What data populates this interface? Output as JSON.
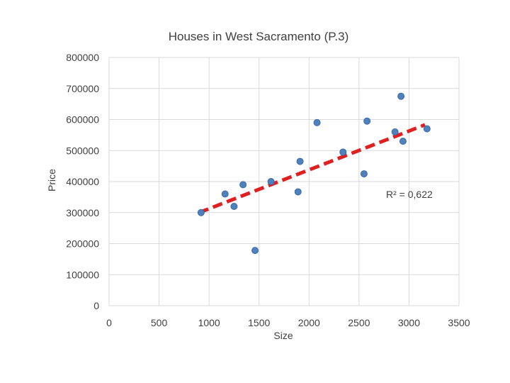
{
  "chart_data": {
    "type": "scatter",
    "title": "Houses in West Sacramento (P.3)",
    "xlabel": "Size",
    "ylabel": "Price",
    "xlim": [
      0,
      3500
    ],
    "ylim": [
      0,
      800000
    ],
    "x_ticks": [
      "0",
      "500",
      "1000",
      "1500",
      "2000",
      "2500",
      "3000",
      "3500"
    ],
    "y_ticks": [
      "0",
      "100000",
      "200000",
      "300000",
      "400000",
      "500000",
      "600000",
      "700000",
      "800000"
    ],
    "grid": true,
    "series": [
      {
        "points": [
          {
            "x": 920,
            "y": 300000
          },
          {
            "x": 1160,
            "y": 360000
          },
          {
            "x": 1250,
            "y": 320000
          },
          {
            "x": 1340,
            "y": 390000
          },
          {
            "x": 1460,
            "y": 178000
          },
          {
            "x": 1620,
            "y": 400000
          },
          {
            "x": 1890,
            "y": 367000
          },
          {
            "x": 1910,
            "y": 465000
          },
          {
            "x": 2080,
            "y": 590000
          },
          {
            "x": 2340,
            "y": 495000
          },
          {
            "x": 2550,
            "y": 425000
          },
          {
            "x": 2580,
            "y": 595000
          },
          {
            "x": 2860,
            "y": 560000
          },
          {
            "x": 2920,
            "y": 675000
          },
          {
            "x": 2940,
            "y": 530000
          },
          {
            "x": 3180,
            "y": 570000
          }
        ]
      }
    ],
    "trendline": {
      "type": "linear",
      "start": {
        "x": 900,
        "y": 300000
      },
      "end": {
        "x": 3160,
        "y": 583000
      },
      "r2_label": "R² = 0,622"
    }
  }
}
